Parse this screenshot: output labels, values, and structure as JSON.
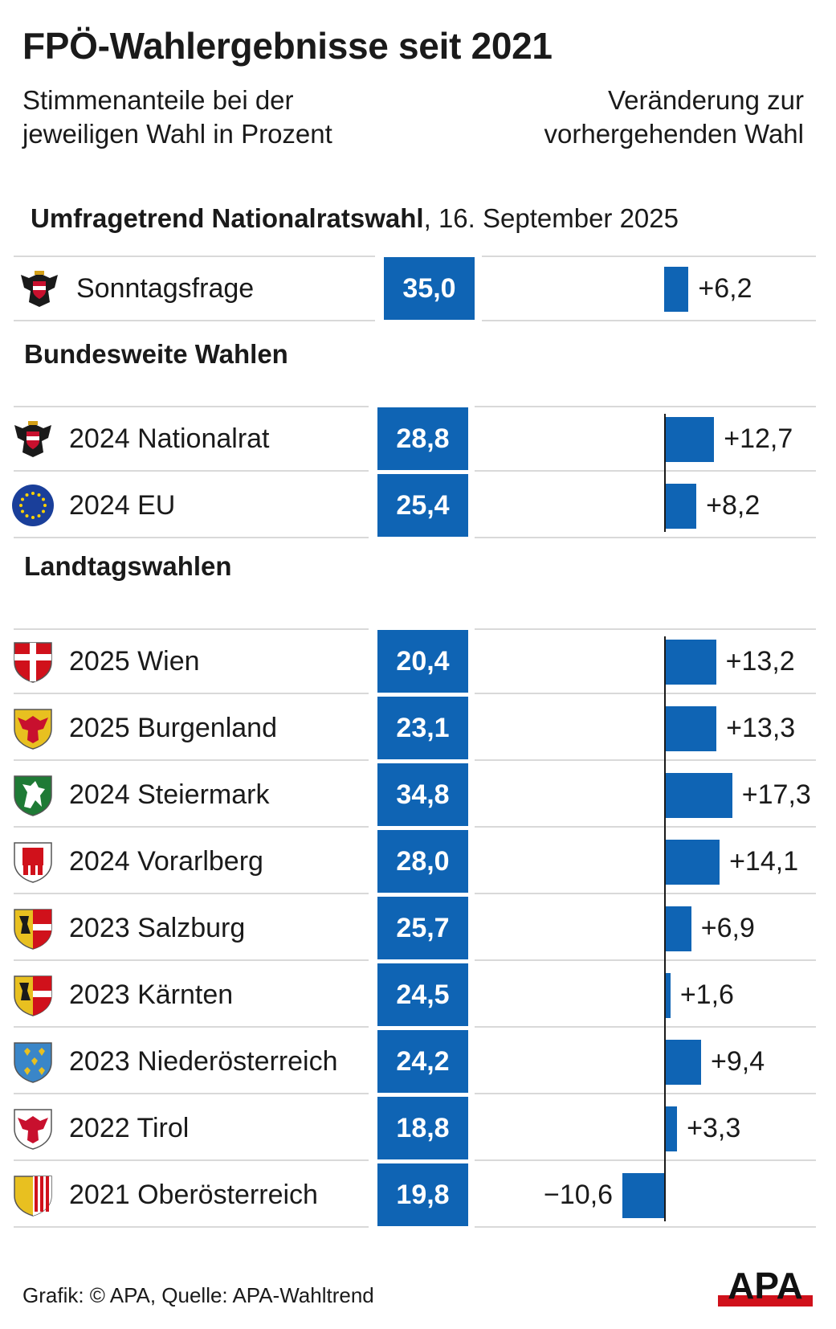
{
  "title": "FPÖ-Wahlergebnisse seit 2021",
  "subtitle_left": "Stimmenanteile bei der jeweiligen Wahl in Prozent",
  "subtitle_right": "Veränderung zur vorhergehenden Wahl",
  "footer": "Grafik: © APA, Quelle: APA-Wahltrend",
  "logo_text": "APA",
  "colors": {
    "accent": "#0f64b4",
    "text": "#1a1a1a",
    "rule": "#d9d9d9"
  },
  "chart_data": {
    "type": "bar",
    "unit": "Prozent",
    "sections": [
      {
        "heading_bold": "Umfragetrend Nationalratswahl",
        "heading_normal": ", 16. September 2025",
        "rows": [
          {
            "label": "Sonntagsfrage",
            "value": 35.0,
            "value_text": "35,0",
            "change": 6.2,
            "change_text": "+6,2",
            "icon": "austria-eagle-icon"
          }
        ]
      },
      {
        "heading_bold": "Bundesweite Wahlen",
        "heading_normal": "",
        "rows": [
          {
            "label": "2024 Nationalrat",
            "value": 28.8,
            "value_text": "28,8",
            "change": 12.7,
            "change_text": "+12,7",
            "icon": "austria-eagle-icon"
          },
          {
            "label": "2024 EU",
            "value": 25.4,
            "value_text": "25,4",
            "change": 8.2,
            "change_text": "+8,2",
            "icon": "eu-flag-icon"
          }
        ]
      },
      {
        "heading_bold": "Landtagswahlen",
        "heading_normal": "",
        "rows": [
          {
            "label": "2025 Wien",
            "value": 20.4,
            "value_text": "20,4",
            "change": 13.2,
            "change_text": "+13,2",
            "icon": "vienna-crest-icon"
          },
          {
            "label": "2025 Burgenland",
            "value": 23.1,
            "value_text": "23,1",
            "change": 13.3,
            "change_text": "+13,3",
            "icon": "burgenland-crest-icon"
          },
          {
            "label": "2024 Steiermark",
            "value": 34.8,
            "value_text": "34,8",
            "change": 17.3,
            "change_text": "+17,3",
            "icon": "styria-crest-icon"
          },
          {
            "label": "2024 Vorarlberg",
            "value": 28.0,
            "value_text": "28,0",
            "change": 14.1,
            "change_text": "+14,1",
            "icon": "vorarlberg-crest-icon"
          },
          {
            "label": "2023 Salzburg",
            "value": 25.7,
            "value_text": "25,7",
            "change": 6.9,
            "change_text": "+6,9",
            "icon": "salzburg-crest-icon"
          },
          {
            "label": "2023 Kärnten",
            "value": 24.5,
            "value_text": "24,5",
            "change": 1.6,
            "change_text": "+1,6",
            "icon": "carinthia-crest-icon"
          },
          {
            "label": "2023 Niederösterreich",
            "value": 24.2,
            "value_text": "24,2",
            "change": 9.4,
            "change_text": "+9,4",
            "icon": "lower-austria-crest-icon"
          },
          {
            "label": "2022 Tirol",
            "value": 18.8,
            "value_text": "18,8",
            "change": 3.3,
            "change_text": "+3,3",
            "icon": "tyrol-crest-icon"
          },
          {
            "label": "2021 Oberösterreich",
            "value": 19.8,
            "value_text": "19,8",
            "change": -10.6,
            "change_text": "−10,6",
            "icon": "upper-austria-crest-icon"
          }
        ]
      }
    ]
  }
}
